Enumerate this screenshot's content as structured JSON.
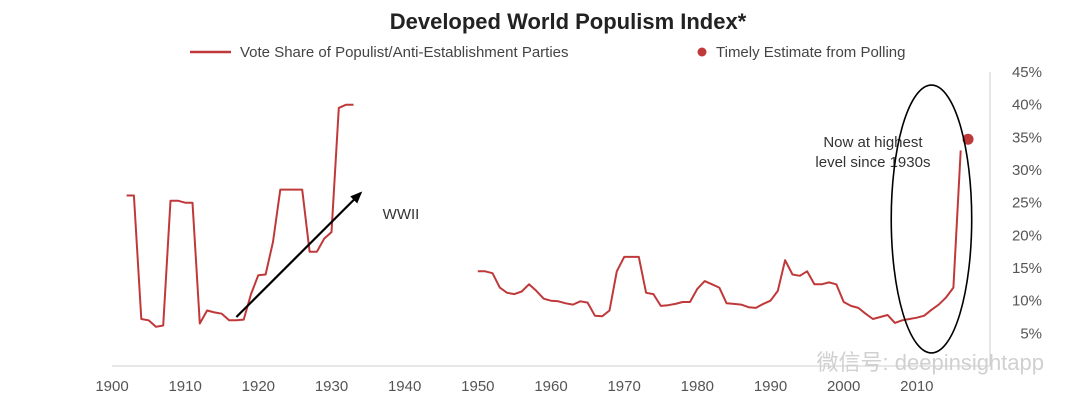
{
  "chart_data": {
    "type": "line",
    "title": "Developed World Populism Index*",
    "xlabel": "",
    "ylabel": "",
    "xlim": [
      1900,
      2020
    ],
    "ylim": [
      0,
      45
    ],
    "x_ticks": [
      "1900",
      "1910",
      "1920",
      "1930",
      "1940",
      "1950",
      "1960",
      "1970",
      "1980",
      "1990",
      "2000",
      "2010"
    ],
    "x_tick_values": [
      1900,
      1910,
      1920,
      1930,
      1940,
      1950,
      1960,
      1970,
      1980,
      1990,
      2000,
      2010
    ],
    "y_ticks": [
      "5%",
      "10%",
      "15%",
      "20%",
      "25%",
      "30%",
      "35%",
      "40%",
      "45%"
    ],
    "y_tick_values": [
      5,
      10,
      15,
      20,
      25,
      30,
      35,
      40,
      45
    ],
    "grid": false,
    "legend_position": "top",
    "colors": {
      "series": "#c0393a",
      "text": "#333333",
      "axis": "#cccccc",
      "arrow": "#000000"
    },
    "series": [
      {
        "name": "Vote Share of Populist/Anti-Establishment Parties",
        "type": "line",
        "segments": [
          {
            "x": [
              1902,
              1903,
              1904,
              1905,
              1906,
              1907,
              1908,
              1909,
              1910,
              1911,
              1912,
              1913,
              1914,
              1915,
              1916,
              1917,
              1918,
              1919,
              1920,
              1921,
              1922,
              1923,
              1924,
              1925,
              1926,
              1927,
              1928,
              1929,
              1930,
              1931,
              1932,
              1933
            ],
            "y": [
              26.1,
              26.1,
              7.2,
              7.0,
              6.0,
              6.2,
              25.3,
              25.3,
              25.0,
              25.0,
              6.5,
              8.5,
              8.2,
              8.0,
              7.0,
              7.0,
              7.1,
              11.0,
              13.9,
              14.0,
              19.0,
              27.0,
              27.0,
              27.0,
              27.0,
              17.5,
              17.5,
              19.5,
              20.5,
              39.5,
              40.0,
              40.0
            ]
          },
          {
            "x": [
              1950,
              1951,
              1952,
              1953,
              1954,
              1955,
              1956,
              1957,
              1958,
              1959,
              1960,
              1961,
              1962,
              1963,
              1964,
              1965,
              1966,
              1967,
              1968,
              1969,
              1970,
              1971,
              1972,
              1973,
              1974,
              1975,
              1976,
              1977,
              1978,
              1979,
              1980,
              1981,
              1982,
              1983,
              1984,
              1985,
              1986,
              1987,
              1988,
              1989,
              1990,
              1991,
              1992,
              1993,
              1994,
              1995,
              1996,
              1997,
              1998,
              1999,
              2000,
              2001,
              2002,
              2003,
              2004,
              2005,
              2006,
              2007,
              2008,
              2009,
              2010,
              2011,
              2012,
              2013,
              2014,
              2015,
              2016
            ],
            "y": [
              14.5,
              14.5,
              14.2,
              12.0,
              11.2,
              11.0,
              11.4,
              12.5,
              11.5,
              10.3,
              10.0,
              9.9,
              9.6,
              9.4,
              9.9,
              9.7,
              7.7,
              7.6,
              8.5,
              14.5,
              16.7,
              16.7,
              16.7,
              11.2,
              11.0,
              9.2,
              9.3,
              9.5,
              9.8,
              9.8,
              11.8,
              13.0,
              12.5,
              12.0,
              9.6,
              9.5,
              9.4,
              9.0,
              8.9,
              9.5,
              10.0,
              11.5,
              16.2,
              14.0,
              13.8,
              14.5,
              12.5,
              12.5,
              12.8,
              12.5,
              9.8,
              9.2,
              8.9,
              8.0,
              7.2,
              7.5,
              7.8,
              6.6,
              7.0,
              7.2,
              7.4,
              7.7,
              8.6,
              9.4,
              10.5,
              12.0,
              33.0
            ]
          }
        ]
      },
      {
        "name": "Timely Estimate from Polling",
        "type": "scatter",
        "x": [
          2017
        ],
        "y": [
          34.7
        ]
      }
    ],
    "annotations": [
      {
        "text": "WWII",
        "x": 1939.5,
        "y": 22.5
      },
      {
        "lines": [
          "Now at highest",
          "level since 1930s"
        ],
        "x": 2004,
        "y": 33.5
      },
      {
        "type": "arrow",
        "from": [
          1917,
          7.5
        ],
        "to": [
          1934,
          26.5
        ]
      },
      {
        "type": "ellipse",
        "center": [
          2012,
          22.5
        ],
        "radius_years": 5.5,
        "radius_values": 20.5
      }
    ]
  },
  "watermark": "微信号: deepinsightapp"
}
